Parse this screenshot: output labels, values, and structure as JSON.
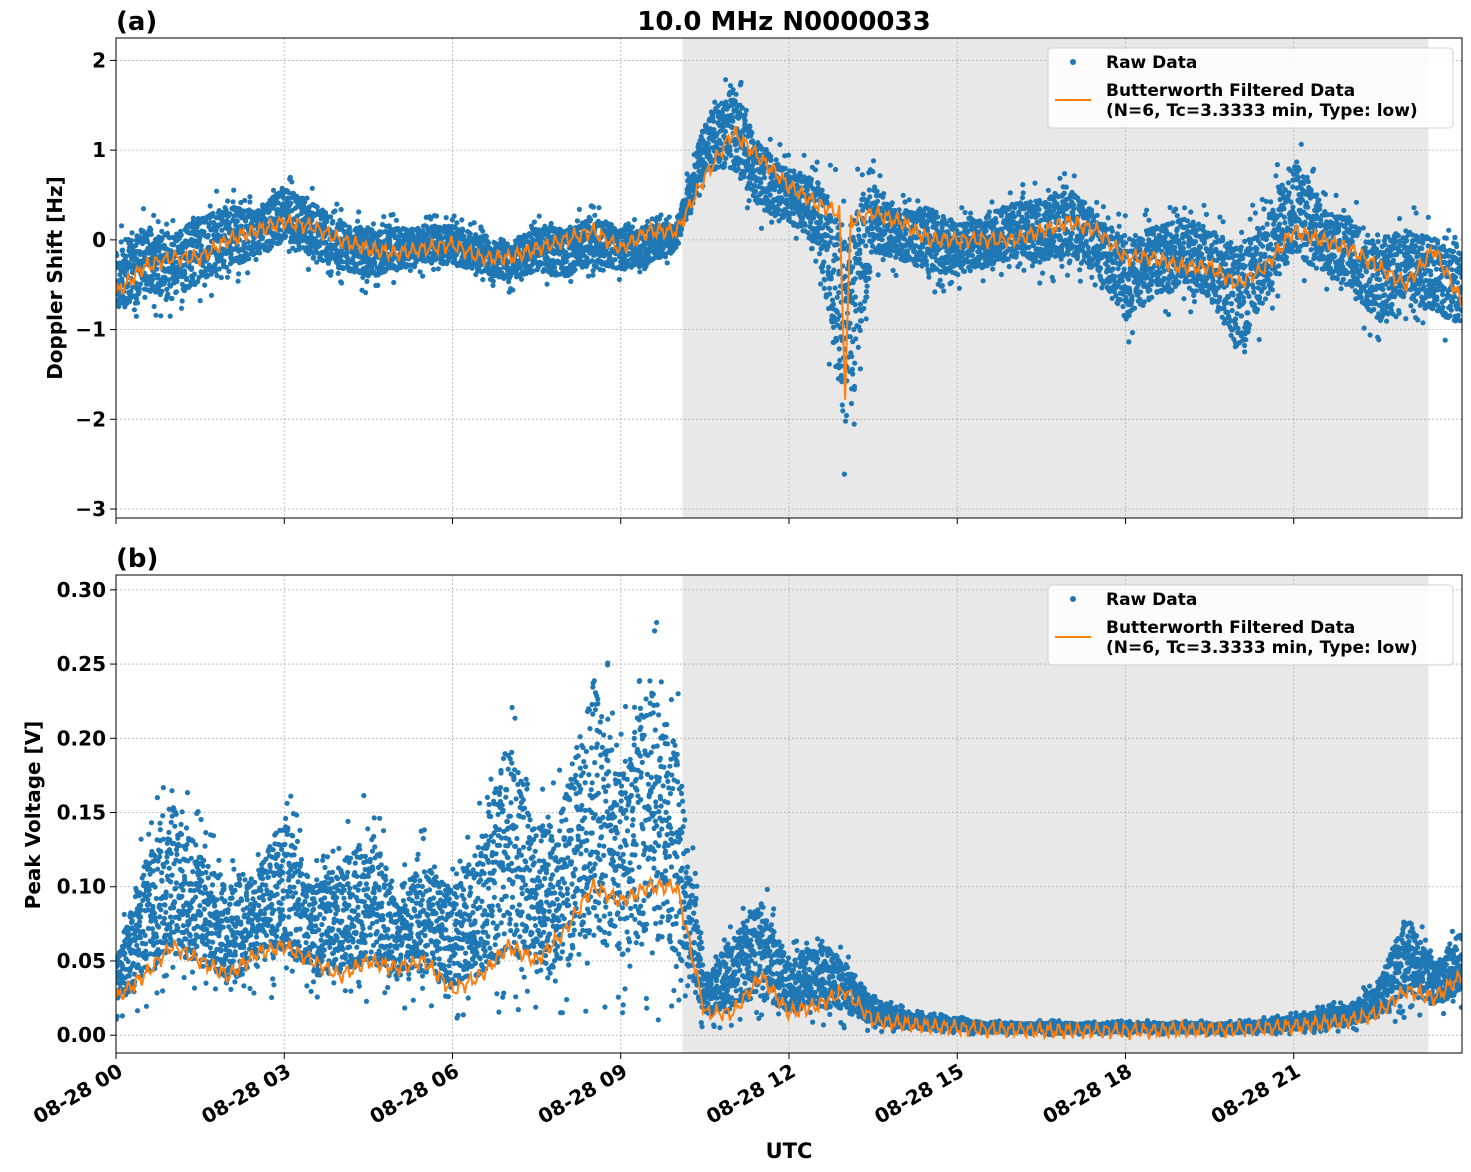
{
  "figure": {
    "title": "10.0 MHz N0000033",
    "xlabel": "UTC"
  },
  "colors": {
    "raw": "#1f77b4",
    "filtered": "#ff7f0e",
    "shade": "#e8e8e8",
    "grid": "#b0b0b0"
  },
  "chart_data": [
    {
      "type": "line",
      "panel_label": "(a)",
      "ylabel": "Doppler Shift [Hz]",
      "xlim_hours": [
        0,
        24
      ],
      "ylim": [
        -3.1,
        2.25
      ],
      "yticks": [
        2,
        1,
        0,
        -1,
        -2,
        -3
      ],
      "ytick_labels": [
        "2",
        "1",
        "0",
        "−1",
        "−2",
        "−3"
      ],
      "shaded_region_hours": [
        10.1,
        23.4
      ],
      "grid": true,
      "legend_position": "top-right",
      "legend": [
        "Raw Data",
        "Butterworth Filtered Data",
        "(N=6, Tc=3.3333 min, Type: low)"
      ],
      "series": [
        {
          "name": "Raw Data",
          "style": "scatter",
          "x_hours": [
            0,
            0.5,
            1,
            1.5,
            2,
            2.5,
            3,
            3.5,
            4,
            4.5,
            5,
            5.5,
            6,
            6.5,
            7,
            7.5,
            8,
            8.5,
            9,
            9.5,
            10,
            10.5,
            11,
            11.5,
            12,
            12.5,
            13,
            13.5,
            14,
            14.5,
            15,
            15.5,
            16,
            16.5,
            17,
            17.5,
            18,
            18.5,
            19,
            19.5,
            20,
            20.5,
            21,
            21.5,
            22,
            22.5,
            23,
            23.5,
            24
          ],
          "y_low": [
            -1.1,
            -0.8,
            -0.9,
            -0.7,
            -0.5,
            -0.4,
            -0.2,
            -0.4,
            -0.5,
            -0.6,
            -0.5,
            -0.4,
            -0.4,
            -0.5,
            -0.6,
            -0.5,
            -0.6,
            -0.4,
            -0.5,
            -0.4,
            -0.2,
            0.6,
            0.5,
            0.1,
            0.0,
            -0.3,
            -2.85,
            -0.4,
            -0.4,
            -0.6,
            -0.6,
            -0.5,
            -0.4,
            -0.5,
            -0.4,
            -0.6,
            -1.2,
            -0.9,
            -0.8,
            -0.9,
            -1.6,
            -1.0,
            -0.5,
            -0.6,
            -0.8,
            -1.2,
            -0.9,
            -1.1,
            -1.2
          ],
          "y_high": [
            0.2,
            0.4,
            0.3,
            0.5,
            0.6,
            0.5,
            0.8,
            0.6,
            0.4,
            0.3,
            0.3,
            0.3,
            0.3,
            0.2,
            0.1,
            0.3,
            0.3,
            0.4,
            0.3,
            0.3,
            0.3,
            1.5,
            2.0,
            1.3,
            1.0,
            0.9,
            0.8,
            0.9,
            0.5,
            0.6,
            0.4,
            0.5,
            0.6,
            0.7,
            0.8,
            0.5,
            0.3,
            0.4,
            0.5,
            0.4,
            0.3,
            0.5,
            1.3,
            0.6,
            0.5,
            0.3,
            0.4,
            0.3,
            0.1
          ]
        },
        {
          "name": "Butterworth Filtered Data",
          "style": "line",
          "x_hours": [
            0,
            0.5,
            1,
            1.5,
            2,
            2.5,
            3,
            3.5,
            4,
            4.5,
            5,
            5.5,
            6,
            6.5,
            7,
            7.5,
            8,
            8.5,
            9,
            9.5,
            10,
            10.5,
            11,
            11.5,
            12,
            12.5,
            12.9,
            13.0,
            13.1,
            13.5,
            14,
            14.5,
            15,
            15.5,
            16,
            16.5,
            17,
            17.5,
            18,
            18.5,
            19,
            19.5,
            20,
            20.5,
            21,
            21.5,
            22,
            22.5,
            23,
            23.5,
            24
          ],
          "y": [
            -0.6,
            -0.3,
            -0.2,
            -0.2,
            0.0,
            0.1,
            0.2,
            0.15,
            0.0,
            -0.1,
            -0.15,
            -0.1,
            -0.05,
            -0.2,
            -0.2,
            -0.1,
            0.0,
            0.1,
            -0.1,
            0.1,
            0.1,
            0.7,
            1.2,
            0.9,
            0.6,
            0.4,
            0.3,
            -1.7,
            0.2,
            0.3,
            0.2,
            0.0,
            0.0,
            0.0,
            0.0,
            0.1,
            0.2,
            0.1,
            -0.2,
            -0.2,
            -0.3,
            -0.3,
            -0.5,
            -0.3,
            0.1,
            0.0,
            -0.1,
            -0.3,
            -0.5,
            -0.1,
            -0.7
          ]
        }
      ]
    },
    {
      "type": "line",
      "panel_label": "(b)",
      "ylabel": "Peak Voltage [V]",
      "xlim_hours": [
        0,
        24
      ],
      "ylim": [
        -0.012,
        0.31
      ],
      "yticks": [
        0.3,
        0.25,
        0.2,
        0.15,
        0.1,
        0.05,
        0.0
      ],
      "ytick_labels": [
        "0.30",
        "0.25",
        "0.20",
        "0.15",
        "0.10",
        "0.05",
        "0.00"
      ],
      "shaded_region_hours": [
        10.1,
        23.4
      ],
      "grid": true,
      "legend_position": "top-right",
      "legend": [
        "Raw Data",
        "Butterworth Filtered Data",
        "(N=6, Tc=3.3333 min, Type: low)"
      ],
      "xticks_hours": [
        0,
        3,
        6,
        9,
        12,
        15,
        18,
        21
      ],
      "xtick_labels": [
        "08-28 00",
        "08-28 03",
        "08-28 06",
        "08-28 09",
        "08-28 12",
        "08-28 15",
        "08-28 18",
        "08-28 21"
      ],
      "series": [
        {
          "name": "Raw Data",
          "style": "scatter",
          "x_hours": [
            0,
            0.5,
            1,
            1.5,
            2,
            2.5,
            3,
            3.5,
            4,
            4.5,
            5,
            5.5,
            6,
            6.5,
            7,
            7.5,
            8,
            8.5,
            9,
            9.5,
            10,
            10.5,
            11,
            11.5,
            12,
            12.5,
            13,
            13.5,
            14,
            14.5,
            15,
            15.5,
            16,
            16.5,
            17,
            17.5,
            18,
            18.5,
            19,
            19.5,
            20,
            20.5,
            21,
            21.5,
            22,
            22.5,
            23,
            23.5,
            24
          ],
          "y_low": [
            0.01,
            0.015,
            0.02,
            0.02,
            0.015,
            0.025,
            0.025,
            0.02,
            0.015,
            0.02,
            0.015,
            0.015,
            0.01,
            0.01,
            0.01,
            0.01,
            0.01,
            0.01,
            0.01,
            0.01,
            0.01,
            0.005,
            0.005,
            0.005,
            0.005,
            0.004,
            0.004,
            0.002,
            0.002,
            0.001,
            0.001,
            0.0,
            0.0,
            0.0,
            0.0,
            0.0,
            0.0,
            0.0,
            0.0,
            0.0,
            0.0,
            0.0,
            0.001,
            0.002,
            0.003,
            0.005,
            0.01,
            0.01,
            0.015
          ],
          "y_high": [
            0.06,
            0.14,
            0.19,
            0.15,
            0.12,
            0.13,
            0.18,
            0.12,
            0.14,
            0.17,
            0.12,
            0.14,
            0.12,
            0.16,
            0.25,
            0.17,
            0.2,
            0.3,
            0.22,
            0.3,
            0.24,
            0.05,
            0.08,
            0.11,
            0.06,
            0.08,
            0.06,
            0.03,
            0.02,
            0.015,
            0.015,
            0.01,
            0.01,
            0.01,
            0.01,
            0.01,
            0.01,
            0.01,
            0.01,
            0.01,
            0.01,
            0.012,
            0.015,
            0.02,
            0.025,
            0.04,
            0.1,
            0.06,
            0.085
          ]
        },
        {
          "name": "Butterworth Filtered Data",
          "style": "line",
          "x_hours": [
            0,
            0.5,
            1,
            1.5,
            2,
            2.5,
            3,
            3.5,
            4,
            4.5,
            5,
            5.5,
            6,
            6.5,
            7,
            7.5,
            8,
            8.5,
            9,
            9.5,
            10,
            10.5,
            11,
            11.5,
            12,
            12.5,
            13,
            13.5,
            14,
            14.5,
            15,
            15.5,
            16,
            16.5,
            17,
            17.5,
            18,
            18.5,
            19,
            19.5,
            20,
            20.5,
            21,
            21.5,
            22,
            22.5,
            23,
            23.5,
            24
          ],
          "y": [
            0.025,
            0.04,
            0.06,
            0.05,
            0.04,
            0.055,
            0.06,
            0.05,
            0.04,
            0.05,
            0.045,
            0.05,
            0.03,
            0.04,
            0.06,
            0.05,
            0.07,
            0.1,
            0.09,
            0.1,
            0.1,
            0.015,
            0.015,
            0.04,
            0.015,
            0.02,
            0.03,
            0.01,
            0.008,
            0.006,
            0.005,
            0.004,
            0.004,
            0.003,
            0.003,
            0.003,
            0.003,
            0.003,
            0.004,
            0.004,
            0.004,
            0.005,
            0.006,
            0.008,
            0.01,
            0.015,
            0.03,
            0.025,
            0.04
          ]
        }
      ]
    }
  ]
}
